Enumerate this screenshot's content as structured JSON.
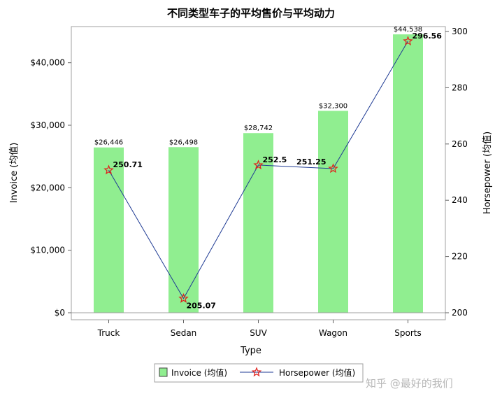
{
  "chart_data": {
    "type": "bar",
    "title": "不同类型车子的平均售价与平均动力",
    "xlabel": "Type",
    "ylabel": "Invoice (均值)",
    "y2label": "Horsepower (均值)",
    "categories": [
      "Truck",
      "Sedan",
      "SUV",
      "Wagon",
      "Sports"
    ],
    "ylim": [
      0,
      45000
    ],
    "yticks": [
      "$0",
      "$10,000",
      "$20,000",
      "$30,000",
      "$40,000"
    ],
    "y2lim": [
      200,
      300
    ],
    "y2ticks": [
      "200",
      "220",
      "240",
      "260",
      "280",
      "300"
    ],
    "grid": false,
    "legend_position": "bottom",
    "series": [
      {
        "name": "Invoice (均值)",
        "kind": "bar",
        "axis": "left",
        "color": "#90ee90",
        "values": [
          26446,
          26498,
          28742,
          32300,
          44538
        ],
        "labels": [
          "$26,446",
          "$26,498",
          "$28,742",
          "$32,300",
          "$44,538"
        ]
      },
      {
        "name": "Horsepower (均值)",
        "kind": "line",
        "axis": "right",
        "color": "#1f3b94",
        "marker_color": "#e0201b",
        "marker": "star",
        "values": [
          250.71,
          205.07,
          252.5,
          251.25,
          296.56
        ],
        "labels": [
          "250.71",
          "205.07",
          "252.5",
          "251.25",
          "296.56"
        ]
      }
    ]
  },
  "watermark": "知乎 @最好的我们"
}
